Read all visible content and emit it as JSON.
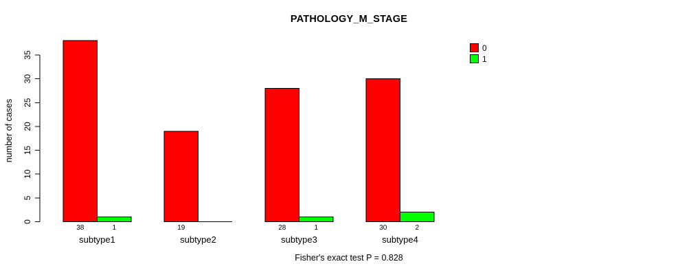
{
  "chart_data": {
    "type": "bar",
    "title": "PATHOLOGY_M_STAGE",
    "categories": [
      "subtype1",
      "subtype2",
      "subtype3",
      "subtype4"
    ],
    "series": [
      {
        "name": "0",
        "color": "#FF0000",
        "values": [
          38,
          19,
          28,
          30
        ]
      },
      {
        "name": "1",
        "color": "#00FF00",
        "values": [
          1,
          0,
          1,
          2
        ]
      }
    ],
    "xlabel": "",
    "ylabel": "number of cases",
    "ylim": [
      0,
      35
    ],
    "yticks": [
      0,
      5,
      10,
      15,
      20,
      25,
      30,
      35
    ],
    "grid": false,
    "legend_position": "top-right",
    "bar_value_labels": true,
    "zero_value_labels_hidden": true,
    "annotation": "Fisher's exact test P = 0.828"
  },
  "colors": {
    "bar_red": "#FF0000",
    "bar_green": "#00FF00",
    "axis": "#000000",
    "text": "#000000",
    "background": "#FFFFFF"
  }
}
